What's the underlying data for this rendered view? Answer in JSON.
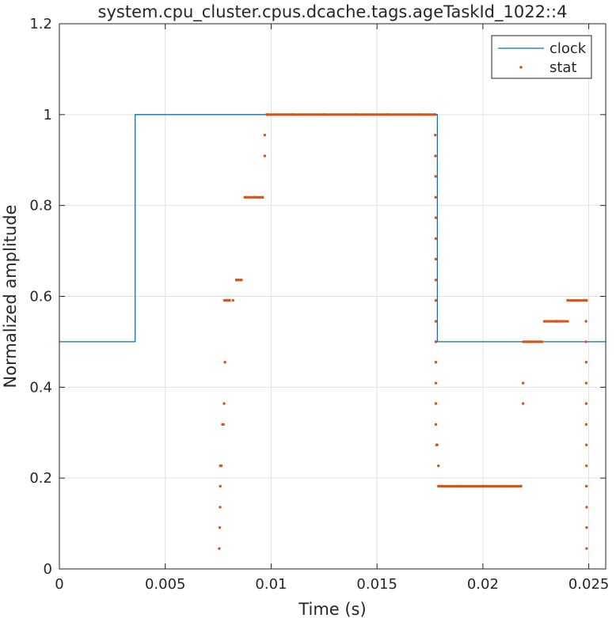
{
  "chart_data": {
    "type": "line",
    "title": "system.cpu_cluster.cpus.dcache.tags.ageTaskId_1022::4",
    "xlabel": "Time (s)",
    "ylabel": "Normalized amplitude",
    "xlim": [
      0,
      0.0258
    ],
    "ylim": [
      0,
      1.2
    ],
    "xticks": [
      0,
      0.005,
      0.01,
      0.015,
      0.02,
      0.025
    ],
    "xtick_labels": [
      "0",
      "0.005",
      "0.01",
      "0.015",
      "0.02",
      "0.025"
    ],
    "yticks": [
      0,
      0.2,
      0.4,
      0.6,
      0.8,
      1,
      1.2
    ],
    "ytick_labels": [
      "0",
      "0.2",
      "0.4",
      "0.6",
      "0.8",
      "1",
      "1.2"
    ],
    "grid": true,
    "legend_position": "top-right",
    "series": [
      {
        "name": "clock",
        "style": "line",
        "color": "#0072BD",
        "x": [
          0,
          0.00358,
          0.00358,
          0.01785,
          0.01785,
          0.0258
        ],
        "y": [
          0.5,
          0.5,
          1.0,
          1.0,
          0.5,
          0.5
        ]
      },
      {
        "name": "stat",
        "style": "dots",
        "color": "#D95319",
        "points": [
          [
            0.00755,
            0.045
          ],
          [
            0.00757,
            0.091
          ],
          [
            0.00759,
            0.136
          ],
          [
            0.0076,
            0.182
          ],
          [
            0.0076,
            0.227
          ],
          [
            0.00765,
            0.227
          ],
          [
            0.0077,
            0.318
          ],
          [
            0.00775,
            0.318
          ],
          [
            0.00778,
            0.364
          ],
          [
            0.00782,
            0.455
          ],
          [
            0.0078,
            0.591
          ],
          [
            0.008,
            0.591
          ],
          [
            0.0082,
            0.591
          ],
          [
            0.0084,
            0.636
          ],
          [
            0.0086,
            0.636
          ],
          [
            0.0088,
            0.818
          ],
          [
            0.0092,
            0.818
          ],
          [
            0.0096,
            0.818
          ],
          [
            0.0097,
            0.909
          ],
          [
            0.0097,
            0.955
          ],
          [
            0.0098,
            1.0
          ],
          [
            0.011,
            1.0
          ],
          [
            0.0125,
            1.0
          ],
          [
            0.014,
            1.0
          ],
          [
            0.0155,
            1.0
          ],
          [
            0.017,
            1.0
          ],
          [
            0.01775,
            1.0
          ],
          [
            0.01775,
            0.955
          ],
          [
            0.01776,
            0.909
          ],
          [
            0.01777,
            0.864
          ],
          [
            0.01777,
            0.818
          ],
          [
            0.01778,
            0.773
          ],
          [
            0.01778,
            0.727
          ],
          [
            0.01778,
            0.682
          ],
          [
            0.01778,
            0.636
          ],
          [
            0.01778,
            0.591
          ],
          [
            0.01778,
            0.545
          ],
          [
            0.01778,
            0.5
          ],
          [
            0.01778,
            0.455
          ],
          [
            0.01778,
            0.409
          ],
          [
            0.01778,
            0.364
          ],
          [
            0.01778,
            0.318
          ],
          [
            0.01781,
            0.273
          ],
          [
            0.01784,
            0.273
          ],
          [
            0.0179,
            0.227
          ],
          [
            0.0179,
            0.182
          ],
          [
            0.019,
            0.182
          ],
          [
            0.02,
            0.182
          ],
          [
            0.021,
            0.182
          ],
          [
            0.0218,
            0.182
          ],
          [
            0.0219,
            0.364
          ],
          [
            0.0219,
            0.409
          ],
          [
            0.0219,
            0.5
          ],
          [
            0.0223,
            0.5
          ],
          [
            0.0227,
            0.5
          ],
          [
            0.0229,
            0.545
          ],
          [
            0.0235,
            0.545
          ],
          [
            0.024,
            0.545
          ],
          [
            0.024,
            0.591
          ],
          [
            0.0245,
            0.591
          ],
          [
            0.0249,
            0.591
          ],
          [
            0.02487,
            0.545
          ],
          [
            0.02487,
            0.5
          ],
          [
            0.02488,
            0.455
          ],
          [
            0.02488,
            0.409
          ],
          [
            0.02488,
            0.364
          ],
          [
            0.02488,
            0.318
          ],
          [
            0.02489,
            0.273
          ],
          [
            0.02489,
            0.227
          ],
          [
            0.02489,
            0.182
          ],
          [
            0.0249,
            0.136
          ],
          [
            0.0249,
            0.091
          ],
          [
            0.0249,
            0.045
          ]
        ],
        "segments": [
          [
            0.0078,
            0.0081,
            0.591
          ],
          [
            0.0083,
            0.0086,
            0.636
          ],
          [
            0.0087,
            0.00965,
            0.818
          ],
          [
            0.00975,
            0.01775,
            1.0
          ],
          [
            0.0179,
            0.02185,
            0.182
          ],
          [
            0.02195,
            0.02285,
            0.5
          ],
          [
            0.0229,
            0.02395,
            0.545
          ],
          [
            0.024,
            0.0249,
            0.591
          ]
        ]
      }
    ]
  }
}
